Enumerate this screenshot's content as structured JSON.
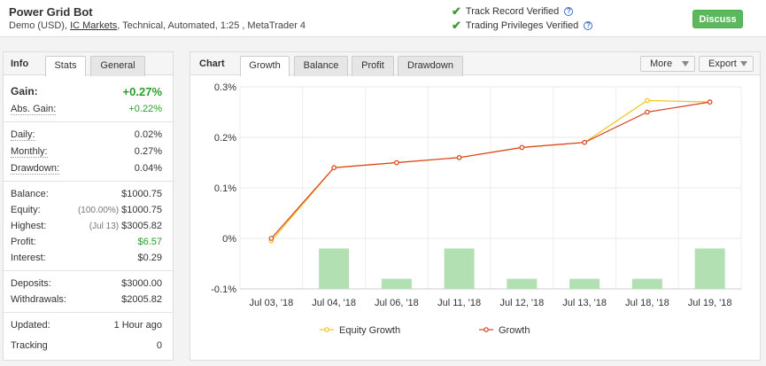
{
  "header": {
    "title": "Power Grid Bot",
    "subtitle_prefix": "Demo (USD),",
    "broker_link": "IC Markets",
    "subtitle_suffix": ", Technical, Automated, 1:25 , MetaTrader 4",
    "verified_track": "Track Record Verified",
    "verified_trading": "Trading Privileges Verified",
    "discuss_label": "Discuss",
    "help_glyph": "?"
  },
  "info": {
    "title": "Info",
    "tabs": [
      "Stats",
      "General"
    ],
    "gain_label": "Gain:",
    "gain_value": "+0.27%",
    "abs_gain_label": "Abs. Gain:",
    "abs_gain_value": "+0.22%",
    "daily_label": "Daily:",
    "daily_value": "0.02%",
    "monthly_label": "Monthly:",
    "monthly_value": "0.27%",
    "drawdown_label": "Drawdown:",
    "drawdown_value": "0.04%",
    "balance_label": "Balance:",
    "balance_value": "$1000.75",
    "equity_label": "Equity:",
    "equity_note": "(100.00%)",
    "equity_value": "$1000.75",
    "highest_label": "Highest:",
    "highest_note": "(Jul 13)",
    "highest_value": "$3005.82",
    "profit_label": "Profit:",
    "profit_value": "$6.57",
    "interest_label": "Interest:",
    "interest_value": "$0.29",
    "deposits_label": "Deposits:",
    "deposits_value": "$3000.00",
    "withdrawals_label": "Withdrawals:",
    "withdrawals_value": "$2005.82",
    "updated_label": "Updated:",
    "updated_value": "1 Hour ago",
    "tracking_label": "Tracking",
    "tracking_value": "0"
  },
  "chart_panel": {
    "title": "Chart",
    "tabs": [
      "Growth",
      "Balance",
      "Profit",
      "Drawdown"
    ],
    "more_label": "More",
    "export_label": "Export"
  },
  "colors": {
    "equity": "#f0c419",
    "growth": "#d9411e",
    "bars": "#b3e0b3",
    "accent_green": "#5cb85c"
  },
  "chart_data": {
    "type": "line",
    "categories": [
      "Jul 03, '18",
      "Jul 04, '18",
      "Jul 06, '18",
      "Jul 11, '18",
      "Jul 12, '18",
      "Jul 13, '18",
      "Jul 18, '18",
      "Jul 19, '18"
    ],
    "ylim": [
      -0.1,
      0.3
    ],
    "y_ticks": [
      -0.1,
      0,
      0.1,
      0.2,
      0.3
    ],
    "y_tick_labels": [
      "-0.1%",
      "0%",
      "0.1%",
      "0.2%",
      "0.3%"
    ],
    "series": [
      {
        "name": "Equity Growth",
        "type": "line",
        "values": [
          -0.005,
          0.14,
          0.15,
          0.16,
          0.18,
          0.19,
          0.273,
          0.27
        ]
      },
      {
        "name": "Growth",
        "type": "line",
        "values": [
          0,
          0.14,
          0.15,
          0.16,
          0.18,
          0.19,
          0.25,
          0.27
        ]
      },
      {
        "type": "bar",
        "values": [
          0,
          0.08,
          0.02,
          0.08,
          0.02,
          0.02,
          0.02,
          0.08
        ]
      }
    ],
    "grid": true,
    "legend": "bottom"
  }
}
